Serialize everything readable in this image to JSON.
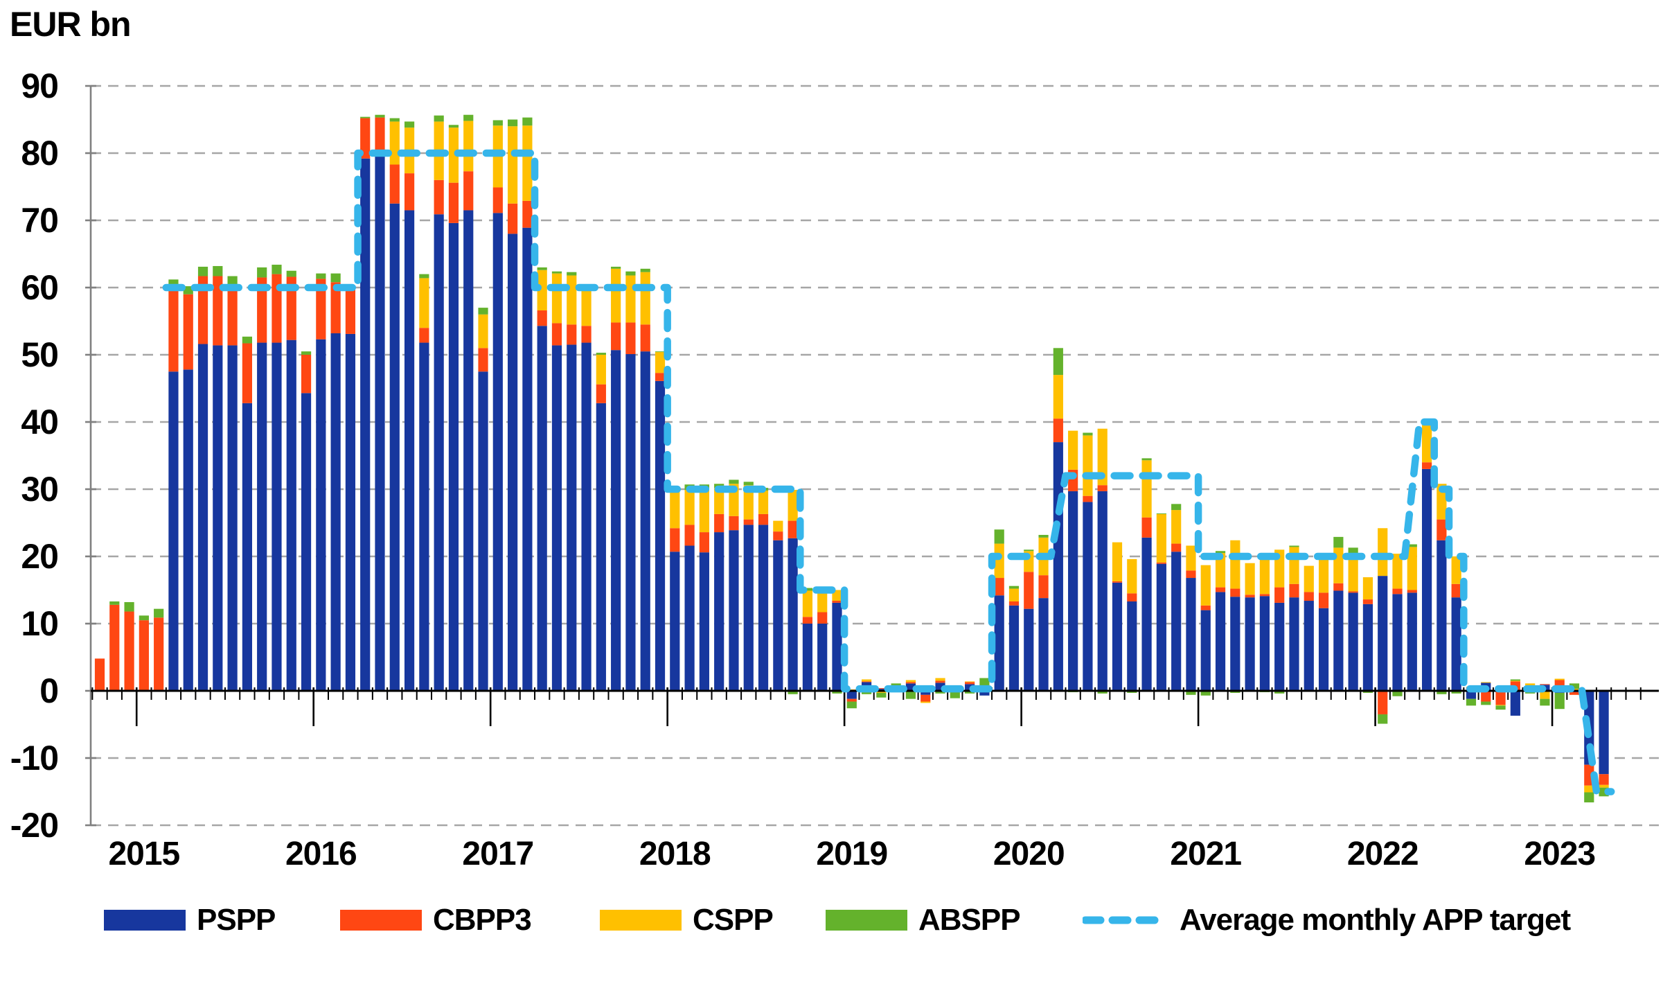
{
  "title": "EUR bn",
  "legend": {
    "pspp": "PSPP",
    "cbpp3": "CBPP3",
    "cspp": "CSPP",
    "abspp": "ABSPP",
    "target": "Average monthly APP target"
  },
  "chart_data": {
    "type": "bar",
    "stacked": true,
    "title": "EUR bn",
    "ylabel": "",
    "xlabel": "",
    "ylim": [
      -20,
      90
    ],
    "y_ticks": [
      90,
      80,
      70,
      60,
      50,
      40,
      30,
      20,
      10,
      0,
      -10,
      -20
    ],
    "grid": "horizontal-dashed",
    "legend_position": "bottom",
    "year_labels": [
      "2015",
      "2016",
      "2017",
      "2018",
      "2019",
      "2020",
      "2021",
      "2022",
      "2023"
    ],
    "series": [
      {
        "key": "pspp",
        "name": "PSPP",
        "color": "#17379E"
      },
      {
        "key": "cbpp3",
        "name": "CBPP3",
        "color": "#FF4713"
      },
      {
        "key": "cspp",
        "name": "CSPP",
        "color": "#FFC000"
      },
      {
        "key": "abspp",
        "name": "ABSPP",
        "color": "#64B22C"
      }
    ],
    "target_line": {
      "name": "Average monthly APP target",
      "color": "#36B5EA",
      "style": "dashed"
    },
    "colors": {
      "grid": "#A6A6A6",
      "y_axis": "#808080",
      "baseline": "#000000",
      "text": "#000000"
    },
    "months": [
      {
        "m": "2014-10",
        "v": [
          0,
          4.8,
          0,
          0
        ],
        "t": null
      },
      {
        "m": "2014-11",
        "v": [
          0,
          12.8,
          0,
          0.5
        ],
        "t": null
      },
      {
        "m": "2014-12",
        "v": [
          0,
          11.8,
          0,
          1.4
        ],
        "t": null
      },
      {
        "m": "2015-01",
        "v": [
          0,
          10.5,
          0,
          0.7
        ],
        "t": null
      },
      {
        "m": "2015-02",
        "v": [
          0,
          10.9,
          0,
          1.3
        ],
        "t": null
      },
      {
        "m": "2015-03",
        "v": [
          47.5,
          12.5,
          0,
          1.2
        ],
        "t": 60
      },
      {
        "m": "2015-04",
        "v": [
          47.8,
          11.2,
          0,
          1.2
        ],
        "t": 60
      },
      {
        "m": "2015-05",
        "v": [
          51.6,
          10.1,
          0,
          1.4
        ],
        "t": 60
      },
      {
        "m": "2015-06",
        "v": [
          51.4,
          10.3,
          0,
          1.5
        ],
        "t": 60
      },
      {
        "m": "2015-07",
        "v": [
          51.4,
          9.1,
          0,
          1.2
        ],
        "t": 60
      },
      {
        "m": "2015-08",
        "v": [
          42.8,
          8.9,
          0,
          1.0
        ],
        "t": 60
      },
      {
        "m": "2015-09",
        "v": [
          51.8,
          9.7,
          0,
          1.5
        ],
        "t": 60
      },
      {
        "m": "2015-10",
        "v": [
          51.8,
          10.2,
          0,
          1.4
        ],
        "t": 60
      },
      {
        "m": "2015-11",
        "v": [
          52.2,
          9.4,
          0,
          0.9
        ],
        "t": 60
      },
      {
        "m": "2015-12",
        "v": [
          44.3,
          5.7,
          0,
          0.5
        ],
        "t": 60
      },
      {
        "m": "2016-01",
        "v": [
          52.3,
          9.0,
          0,
          0.8
        ],
        "t": 60
      },
      {
        "m": "2016-02",
        "v": [
          53.2,
          7.6,
          0,
          1.3
        ],
        "t": 60
      },
      {
        "m": "2016-03",
        "v": [
          53.1,
          6.8,
          0,
          0.4
        ],
        "t": 60
      },
      {
        "m": "2016-04",
        "v": [
          79.2,
          6.0,
          0,
          0.2
        ],
        "t": 80
      },
      {
        "m": "2016-05",
        "v": [
          80.2,
          5.1,
          0,
          0.4
        ],
        "t": 80
      },
      {
        "m": "2016-06",
        "v": [
          72.5,
          5.8,
          6.4,
          0.5
        ],
        "t": 80
      },
      {
        "m": "2016-07",
        "v": [
          71.5,
          5.5,
          6.8,
          0.9
        ],
        "t": 80
      },
      {
        "m": "2016-08",
        "v": [
          51.8,
          2.2,
          7.4,
          0.6
        ],
        "t": 80
      },
      {
        "m": "2016-09",
        "v": [
          70.9,
          5.1,
          8.7,
          0.9
        ],
        "t": 80
      },
      {
        "m": "2016-10",
        "v": [
          69.6,
          6.0,
          8.2,
          0.4
        ],
        "t": 80
      },
      {
        "m": "2016-11",
        "v": [
          71.5,
          5.8,
          7.5,
          0.9
        ],
        "t": 80
      },
      {
        "m": "2016-12",
        "v": [
          47.5,
          3.5,
          5.0,
          1.0
        ],
        "t": 80
      },
      {
        "m": "2017-01",
        "v": [
          71.1,
          3.8,
          9.2,
          0.8
        ],
        "t": 80
      },
      {
        "m": "2017-02",
        "v": [
          68.0,
          4.5,
          11.5,
          1.0
        ],
        "t": 80
      },
      {
        "m": "2017-03",
        "v": [
          68.9,
          4.0,
          11.2,
          1.2
        ],
        "t": 80
      },
      {
        "m": "2017-04",
        "v": [
          54.3,
          2.3,
          6.0,
          0.4
        ],
        "t": 60
      },
      {
        "m": "2017-05",
        "v": [
          51.4,
          3.3,
          7.4,
          0.3
        ],
        "t": 60
      },
      {
        "m": "2017-06",
        "v": [
          51.5,
          3.0,
          7.3,
          0.5
        ],
        "t": 60
      },
      {
        "m": "2017-07",
        "v": [
          51.8,
          2.5,
          5.2,
          0.2
        ],
        "t": 60
      },
      {
        "m": "2017-08",
        "v": [
          42.8,
          2.8,
          4.4,
          0.3
        ],
        "t": 60
      },
      {
        "m": "2017-09",
        "v": [
          50.7,
          4.1,
          8.0,
          0.3
        ],
        "t": 60
      },
      {
        "m": "2017-10",
        "v": [
          50.1,
          4.7,
          7.0,
          0.6
        ],
        "t": 60
      },
      {
        "m": "2017-11",
        "v": [
          50.5,
          4.0,
          7.8,
          0.5
        ],
        "t": 60
      },
      {
        "m": "2017-12",
        "v": [
          46.1,
          1.2,
          3.1,
          0.1
        ],
        "t": 60
      },
      {
        "m": "2018-01",
        "v": [
          20.7,
          3.5,
          5.7,
          0.5
        ],
        "t": 30
      },
      {
        "m": "2018-02",
        "v": [
          21.6,
          3.1,
          5.2,
          0.8
        ],
        "t": 30
      },
      {
        "m": "2018-03",
        "v": [
          20.6,
          3.0,
          6.3,
          0.8
        ],
        "t": 30
      },
      {
        "m": "2018-04",
        "v": [
          23.6,
          2.7,
          3.9,
          0.6
        ],
        "t": 30
      },
      {
        "m": "2018-05",
        "v": [
          23.9,
          2.1,
          4.8,
          0.6
        ],
        "t": 30
      },
      {
        "m": "2018-06",
        "v": [
          24.7,
          0.8,
          5.1,
          0.5
        ],
        "t": 30
      },
      {
        "m": "2018-07",
        "v": [
          24.7,
          1.6,
          3.5,
          0.4
        ],
        "t": 30
      },
      {
        "m": "2018-08",
        "v": [
          22.4,
          1.3,
          1.6,
          0
        ],
        "t": 30
      },
      {
        "m": "2018-09",
        "v": [
          22.7,
          2.6,
          4.6,
          -0.5
        ],
        "t": 30
      },
      {
        "m": "2018-10",
        "v": [
          10.0,
          1.0,
          3.9,
          0.4
        ],
        "t": 15
      },
      {
        "m": "2018-11",
        "v": [
          10.0,
          1.7,
          3.3,
          0.5
        ],
        "t": 15
      },
      {
        "m": "2018-12",
        "v": [
          13.1,
          0.3,
          1.6,
          -0.4
        ],
        "t": 15
      },
      {
        "m": "2019-01",
        "v": [
          -1.2,
          -0.4,
          0.2,
          -1.0
        ],
        "t": 0.3
      },
      {
        "m": "2019-02",
        "v": [
          1.3,
          0.1,
          0.3,
          -0.5
        ],
        "t": 0.3
      },
      {
        "m": "2019-03",
        "v": [
          0.3,
          0.1,
          -0.3,
          -0.7
        ],
        "t": 0.3
      },
      {
        "m": "2019-04",
        "v": [
          0.1,
          0.4,
          -0.2,
          0.6
        ],
        "t": 0.3
      },
      {
        "m": "2019-05",
        "v": [
          1.1,
          0.2,
          0.3,
          -1.2
        ],
        "t": 0.3
      },
      {
        "m": "2019-06",
        "v": [
          -0.6,
          -1.0,
          -0.2,
          0.1
        ],
        "t": 0.3
      },
      {
        "m": "2019-07",
        "v": [
          1.2,
          0.3,
          0.4,
          -0.4
        ],
        "t": 0.3
      },
      {
        "m": "2019-08",
        "v": [
          0.2,
          0.1,
          -0.2,
          -0.9
        ],
        "t": 0.3
      },
      {
        "m": "2019-09",
        "v": [
          1.0,
          0.3,
          0.1,
          -0.4
        ],
        "t": 0.3
      },
      {
        "m": "2019-10",
        "v": [
          -0.7,
          0.5,
          0.1,
          1.3
        ],
        "t": 0.3
      },
      {
        "m": "2019-11",
        "v": [
          14.2,
          2.6,
          5.1,
          2.1
        ],
        "t": 20
      },
      {
        "m": "2019-12",
        "v": [
          12.7,
          0.6,
          1.9,
          0.4
        ],
        "t": 20
      },
      {
        "m": "2020-01",
        "v": [
          12.2,
          5.5,
          3.1,
          0.2
        ],
        "t": 20
      },
      {
        "m": "2020-02",
        "v": [
          13.8,
          3.4,
          5.6,
          0.4
        ],
        "t": 20
      },
      {
        "m": "2020-03",
        "v": [
          37.0,
          3.5,
          6.5,
          4.0
        ],
        "t": null
      },
      {
        "m": "2020-04",
        "v": [
          29.7,
          3.2,
          5.8,
          -0.2
        ],
        "t": 32
      },
      {
        "m": "2020-05",
        "v": [
          28.1,
          0.9,
          9.0,
          0.4
        ],
        "t": 32
      },
      {
        "m": "2020-06",
        "v": [
          29.7,
          0.9,
          8.4,
          -0.4
        ],
        "t": 32
      },
      {
        "m": "2020-07",
        "v": [
          16.1,
          0.2,
          5.8,
          -0.1
        ],
        "t": 32
      },
      {
        "m": "2020-08",
        "v": [
          13.3,
          1.2,
          5.1,
          -0.3
        ],
        "t": 32
      },
      {
        "m": "2020-09",
        "v": [
          22.8,
          3.0,
          8.5,
          0.3
        ],
        "t": 32
      },
      {
        "m": "2020-10",
        "v": [
          18.9,
          0.2,
          7.2,
          0.1
        ],
        "t": 32
      },
      {
        "m": "2020-11",
        "v": [
          20.7,
          1.2,
          5.0,
          0.9
        ],
        "t": 32
      },
      {
        "m": "2020-12",
        "v": [
          16.8,
          1.1,
          3.7,
          -0.6
        ],
        "t": 32
      },
      {
        "m": "2021-01",
        "v": [
          12.0,
          0.7,
          6.0,
          -0.7
        ],
        "t": 20
      },
      {
        "m": "2021-02",
        "v": [
          14.7,
          0.7,
          5.1,
          0.3
        ],
        "t": 20
      },
      {
        "m": "2021-03",
        "v": [
          14.0,
          1.2,
          7.2,
          -0.3
        ],
        "t": 20
      },
      {
        "m": "2021-04",
        "v": [
          13.9,
          0.4,
          4.7,
          -0.1
        ],
        "t": 20
      },
      {
        "m": "2021-05",
        "v": [
          14.1,
          0.3,
          5.7,
          -0.2
        ],
        "t": 20
      },
      {
        "m": "2021-06",
        "v": [
          13.1,
          2.3,
          5.6,
          -0.4
        ],
        "t": 20
      },
      {
        "m": "2021-07",
        "v": [
          13.9,
          2.0,
          5.5,
          0.2
        ],
        "t": 20
      },
      {
        "m": "2021-08",
        "v": [
          13.4,
          1.3,
          3.9,
          -0.1
        ],
        "t": 20
      },
      {
        "m": "2021-09",
        "v": [
          12.3,
          2.3,
          5.5,
          -0.1
        ],
        "t": 20
      },
      {
        "m": "2021-10",
        "v": [
          14.9,
          1.1,
          5.3,
          1.6
        ],
        "t": 20
      },
      {
        "m": "2021-11",
        "v": [
          14.6,
          0.2,
          5.3,
          1.2
        ],
        "t": 20
      },
      {
        "m": "2021-12",
        "v": [
          12.9,
          0.7,
          3.3,
          -0.3
        ],
        "t": 20
      },
      {
        "m": "2022-01",
        "v": [
          17.1,
          -3.5,
          7.1,
          -1.4
        ],
        "t": 20
      },
      {
        "m": "2022-02",
        "v": [
          14.4,
          0.8,
          5.2,
          -0.8
        ],
        "t": 20
      },
      {
        "m": "2022-03",
        "v": [
          14.6,
          0.4,
          6.4,
          0.4
        ],
        "t": null
      },
      {
        "m": "2022-04",
        "v": [
          33.0,
          1.0,
          5.7,
          0.3
        ],
        "t": 40
      },
      {
        "m": "2022-05",
        "v": [
          22.4,
          3.1,
          5.3,
          -0.5
        ],
        "t": 30
      },
      {
        "m": "2022-06",
        "v": [
          13.9,
          2.0,
          4.1,
          -0.4
        ],
        "t": 20
      },
      {
        "m": "2022-07",
        "v": [
          -1.2,
          0.5,
          0.1,
          -1.0
        ],
        "t": 0.3
      },
      {
        "m": "2022-08",
        "v": [
          1.2,
          -1.6,
          0.1,
          -0.5
        ],
        "t": 0.3
      },
      {
        "m": "2022-09",
        "v": [
          0.3,
          -2.1,
          -0.1,
          -0.6
        ],
        "t": 0.3
      },
      {
        "m": "2022-10",
        "v": [
          -3.7,
          1.4,
          0.1,
          0.2
        ],
        "t": 0.3
      },
      {
        "m": "2022-11",
        "v": [
          -0.2,
          0.3,
          0.8,
          -0.2
        ],
        "t": 0.3
      },
      {
        "m": "2022-12",
        "v": [
          0.9,
          0.1,
          -1.2,
          -1.0
        ],
        "t": 0.3
      },
      {
        "m": "2023-01",
        "v": [
          -0.3,
          1.6,
          0.2,
          -2.4
        ],
        "t": 0.3
      },
      {
        "m": "2023-02",
        "v": [
          -0.2,
          -0.4,
          0.3,
          0.8
        ],
        "t": 0.3
      },
      {
        "m": "2023-03",
        "v": [
          -11.0,
          -3.1,
          -1.0,
          -1.5
        ],
        "t": null
      },
      {
        "m": "2023-04",
        "v": [
          -12.4,
          -1.6,
          -0.4,
          -1.3
        ],
        "t": -15
      }
    ]
  }
}
